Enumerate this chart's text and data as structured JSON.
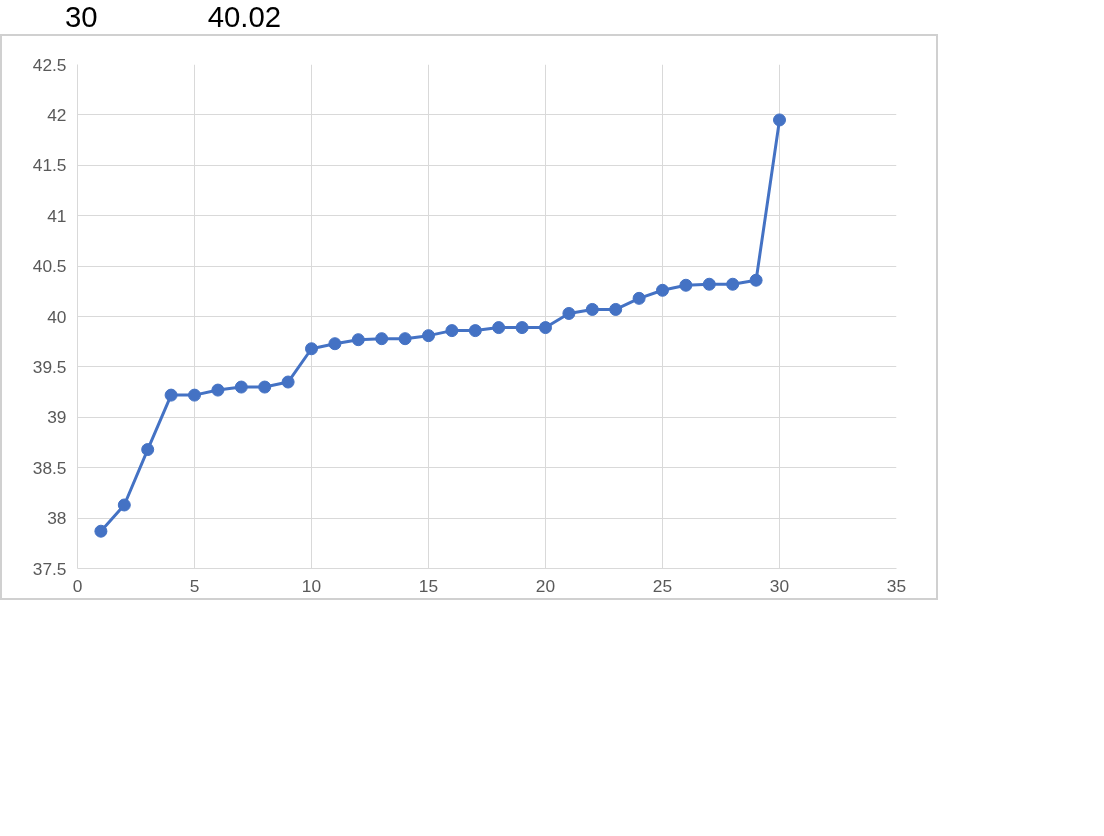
{
  "chart_data": {
    "type": "line",
    "x": [
      1,
      2,
      3,
      4,
      5,
      6,
      7,
      8,
      9,
      10,
      11,
      12,
      13,
      14,
      15,
      16,
      17,
      18,
      19,
      20,
      21,
      22,
      23,
      24,
      25,
      26,
      27,
      28,
      29,
      30
    ],
    "series": [
      {
        "color": "#4472c4",
        "values": [
          37.87,
          38.13,
          38.68,
          39.22,
          39.22,
          39.27,
          39.3,
          39.3,
          39.35,
          39.68,
          39.73,
          39.77,
          39.78,
          39.78,
          39.81,
          39.86,
          39.86,
          39.89,
          39.89,
          39.89,
          40.03,
          40.07,
          40.07,
          40.18,
          40.26,
          40.31,
          40.32,
          40.32,
          40.36,
          41.95
        ]
      }
    ],
    "xlim": [
      0,
      35
    ],
    "xticks": [
      0,
      5,
      10,
      15,
      20,
      25,
      30,
      35
    ],
    "ylim": [
      37.5,
      42.5
    ],
    "yticks": [
      37.5,
      38,
      38.5,
      39,
      39.5,
      40,
      40.5,
      41,
      41.5,
      42,
      42.5
    ],
    "grid": true,
    "marker": "circle",
    "line_style": "solid",
    "annotations": [
      "30",
      "40.02"
    ]
  }
}
